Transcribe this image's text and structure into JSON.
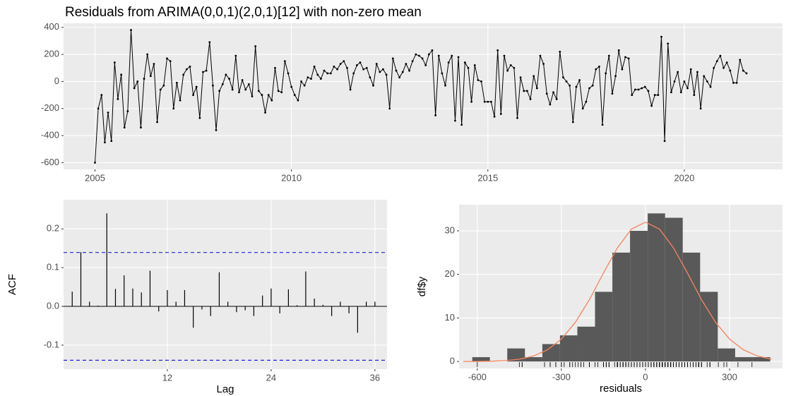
{
  "chart_data": [
    {
      "type": "line",
      "title": "Residuals from ARIMA(0,0,1)(2,0,1)[12] with non-zero mean",
      "color": "#000000",
      "grid": true,
      "xlim": [
        2004.2,
        2022.5
      ],
      "ylim": [
        -650,
        430
      ],
      "xticks": [
        2005,
        2010,
        2015,
        2020
      ],
      "yticks": [
        -600,
        -400,
        -200,
        0,
        200,
        400
      ],
      "x": [
        2005,
        2005.083,
        2005.167,
        2005.25,
        2005.333,
        2005.417,
        2005.5,
        2005.583,
        2005.667,
        2005.75,
        2005.833,
        2005.917,
        2006,
        2006.083,
        2006.167,
        2006.25,
        2006.333,
        2006.417,
        2006.5,
        2006.583,
        2006.667,
        2006.75,
        2006.833,
        2006.917,
        2007,
        2007.083,
        2007.167,
        2007.25,
        2007.333,
        2007.417,
        2007.5,
        2007.583,
        2007.667,
        2007.75,
        2007.833,
        2007.917,
        2008,
        2008.083,
        2008.167,
        2008.25,
        2008.333,
        2008.417,
        2008.5,
        2008.583,
        2008.667,
        2008.75,
        2008.833,
        2008.917,
        2009,
        2009.083,
        2009.167,
        2009.25,
        2009.333,
        2009.417,
        2009.5,
        2009.583,
        2009.667,
        2009.75,
        2009.833,
        2009.917,
        2010,
        2010.083,
        2010.167,
        2010.25,
        2010.333,
        2010.417,
        2010.5,
        2010.583,
        2010.667,
        2010.75,
        2010.833,
        2010.917,
        2011,
        2011.083,
        2011.167,
        2011.25,
        2011.333,
        2011.417,
        2011.5,
        2011.583,
        2011.667,
        2011.75,
        2011.833,
        2011.917,
        2012,
        2012.083,
        2012.167,
        2012.25,
        2012.333,
        2012.417,
        2012.5,
        2012.583,
        2012.667,
        2012.75,
        2012.833,
        2012.917,
        2013,
        2013.083,
        2013.167,
        2013.25,
        2013.333,
        2013.417,
        2013.5,
        2013.583,
        2013.667,
        2013.75,
        2013.833,
        2013.917,
        2014,
        2014.083,
        2014.167,
        2014.25,
        2014.333,
        2014.417,
        2014.5,
        2014.583,
        2014.667,
        2014.75,
        2014.833,
        2014.917,
        2015,
        2015.083,
        2015.167,
        2015.25,
        2015.333,
        2015.417,
        2015.5,
        2015.583,
        2015.667,
        2015.75,
        2015.833,
        2015.917,
        2016,
        2016.083,
        2016.167,
        2016.25,
        2016.333,
        2016.417,
        2016.5,
        2016.583,
        2016.667,
        2016.75,
        2016.833,
        2016.917,
        2017,
        2017.083,
        2017.167,
        2017.25,
        2017.333,
        2017.417,
        2017.5,
        2017.583,
        2017.667,
        2017.75,
        2017.833,
        2017.917,
        2018,
        2018.083,
        2018.167,
        2018.25,
        2018.333,
        2018.417,
        2018.5,
        2018.583,
        2018.667,
        2018.75,
        2018.833,
        2018.917,
        2019,
        2019.083,
        2019.167,
        2019.25,
        2019.333,
        2019.417,
        2019.5,
        2019.583,
        2019.667,
        2019.75,
        2019.833,
        2019.917,
        2020,
        2020.083,
        2020.167,
        2020.25,
        2020.333,
        2020.417,
        2020.5,
        2020.583,
        2020.667,
        2020.75,
        2020.833,
        2020.917,
        2021,
        2021.083,
        2021.167,
        2021.25,
        2021.333,
        2021.417,
        2021.5,
        2021.583
      ],
      "values": [
        -600,
        -200,
        -100,
        -450,
        -230,
        -440,
        140,
        -130,
        50,
        -340,
        -220,
        380,
        -50,
        0,
        -340,
        20,
        200,
        40,
        130,
        -300,
        -60,
        -30,
        170,
        150,
        -200,
        -10,
        -140,
        50,
        90,
        110,
        -100,
        -40,
        -270,
        70,
        80,
        290,
        -30,
        -360,
        -70,
        -20,
        50,
        20,
        -60,
        190,
        -80,
        10,
        -60,
        -20,
        -110,
        260,
        -70,
        -100,
        -230,
        -100,
        -140,
        100,
        -70,
        -80,
        150,
        60,
        -40,
        -100,
        -140,
        0,
        -30,
        30,
        20,
        110,
        50,
        20,
        80,
        60,
        60,
        110,
        90,
        130,
        150,
        100,
        -60,
        60,
        120,
        140,
        90,
        100,
        30,
        -30,
        130,
        70,
        90,
        50,
        -200,
        170,
        80,
        30,
        70,
        130,
        80,
        150,
        200,
        190,
        170,
        120,
        200,
        230,
        -250,
        190,
        60,
        -30,
        140,
        190,
        -290,
        180,
        -320,
        140,
        100,
        -150,
        120,
        10,
        0,
        -150,
        -150,
        -150,
        -260,
        230,
        -240,
        190,
        80,
        120,
        100,
        -270,
        30,
        -70,
        -70,
        -130,
        40,
        -50,
        190,
        130,
        -90,
        -170,
        -80,
        -130,
        220,
        30,
        0,
        -30,
        -300,
        -40,
        10,
        -200,
        -150,
        -50,
        -30,
        90,
        110,
        -320,
        60,
        190,
        -90,
        40,
        230,
        90,
        180,
        170,
        -100,
        -60,
        -60,
        -50,
        -40,
        -70,
        -180,
        -100,
        -100,
        330,
        -440,
        280,
        -80,
        0,
        70,
        -80,
        0,
        -50,
        90,
        -100,
        70,
        -200,
        40,
        0,
        -40,
        100,
        150,
        190,
        100,
        140,
        80,
        -10,
        -10,
        160,
        80,
        60
      ]
    },
    {
      "type": "acf",
      "xlabel": "Lag",
      "ylabel": "ACF",
      "color": "#000000",
      "grid": true,
      "ci": 0.139,
      "ci_color": "#2020d0",
      "xlim": [
        0,
        37.4
      ],
      "ylim": [
        -0.162,
        0.275
      ],
      "xticks": [
        12,
        24,
        36
      ],
      "yticks": [
        -0.1,
        {
          "value": 0,
          "label": "0.0"
        },
        0.1,
        0.2
      ],
      "x": [
        1,
        2,
        3,
        4,
        5,
        6,
        7,
        8,
        9,
        10,
        11,
        12,
        13,
        14,
        15,
        16,
        17,
        18,
        19,
        20,
        21,
        22,
        23,
        24,
        25,
        26,
        27,
        28,
        29,
        30,
        31,
        32,
        33,
        34,
        35,
        36
      ],
      "values": [
        0.038,
        0.14,
        0.012,
        0.002,
        0.24,
        0.045,
        0.08,
        0.046,
        0.036,
        0.092,
        -0.013,
        0.042,
        0.012,
        0.042,
        -0.055,
        -0.008,
        -0.025,
        0.088,
        0.012,
        -0.015,
        -0.01,
        -0.025,
        0.028,
        0.046,
        -0.018,
        0.044,
        0.003,
        0.09,
        0.02,
        0.004,
        -0.025,
        0.012,
        -0.018,
        -0.068,
        0.012,
        0.012
      ]
    },
    {
      "type": "histogram",
      "xlabel": "residuals",
      "ylabel": "df$y",
      "color": "#595959",
      "grid": true,
      "xlim": [
        -665,
        489
      ],
      "ylim": [
        -1.6,
        36
      ],
      "xticks": [
        -600,
        -300,
        0,
        300
      ],
      "yticks": [
        0,
        10,
        20,
        30
      ],
      "bins": [
        -618,
        -555,
        -493,
        -430,
        -368,
        -305,
        -243,
        -180,
        -118,
        -55,
        8,
        70,
        133,
        195,
        258,
        320,
        383,
        445
      ],
      "counts": [
        1,
        0,
        3,
        1,
        4,
        6,
        8,
        16,
        25,
        30,
        34,
        33,
        25,
        16,
        3,
        1,
        1
      ],
      "curve": {
        "color": "#f4845f",
        "x": [
          -650,
          -600,
          -550,
          -500,
          -450,
          -400,
          -350,
          -300,
          -250,
          -200,
          -150,
          -100,
          -50,
          0,
          50,
          100,
          150,
          200,
          250,
          300,
          350,
          400,
          450
        ],
        "y": [
          0.006,
          0.02,
          0.07,
          0.2,
          0.52,
          1.25,
          2.67,
          5.15,
          9.0,
          14.2,
          20.3,
          26.1,
          30.4,
          32,
          30.4,
          26.1,
          20.3,
          14.2,
          9.0,
          5.15,
          2.67,
          1.25,
          0.52
        ]
      }
    }
  ]
}
